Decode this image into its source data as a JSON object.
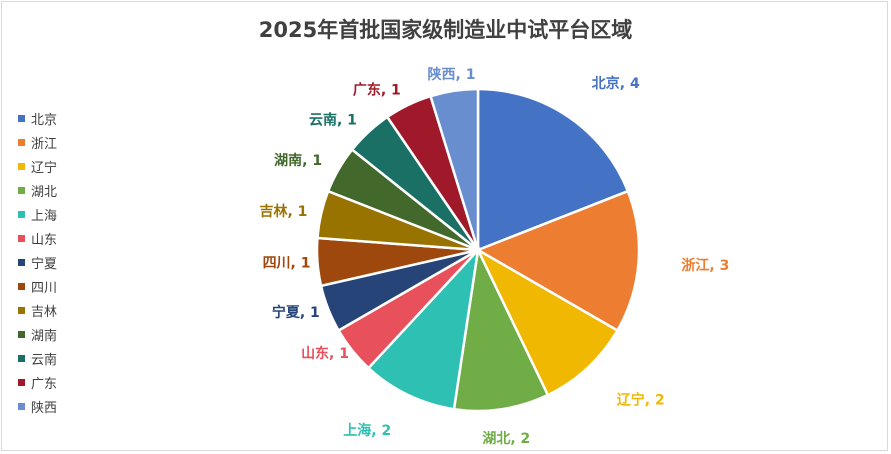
{
  "chart_data": {
    "type": "pie",
    "title": "2025年首批国家级制造业中试平台区域",
    "legend_position": "left",
    "categories": [
      "北京",
      "浙江",
      "辽宁",
      "湖北",
      "上海",
      "山东",
      "宁夏",
      "四川",
      "吉林",
      "湖南",
      "云南",
      "广东",
      "陕西"
    ],
    "values": [
      4,
      3,
      2,
      2,
      2,
      1,
      1,
      1,
      1,
      1,
      1,
      1,
      1
    ],
    "data_labels": [
      "北京, 4",
      "浙江, 3",
      "辽宁, 2",
      "湖北, 2",
      "上海, 2",
      "山东, 1",
      "宁夏, 1",
      "四川, 1",
      "吉林, 1",
      "湖南, 1",
      "云南, 1",
      "广东, 1",
      "陕西, 1"
    ],
    "colors": [
      "#4472C4",
      "#ED7D31",
      "#F0B800",
      "#70AD47",
      "#2EC0B3",
      "#E8505B",
      "#264478",
      "#9E480E",
      "#997300",
      "#43682B",
      "#1B7066",
      "#A0192A",
      "#698ED0"
    ]
  }
}
